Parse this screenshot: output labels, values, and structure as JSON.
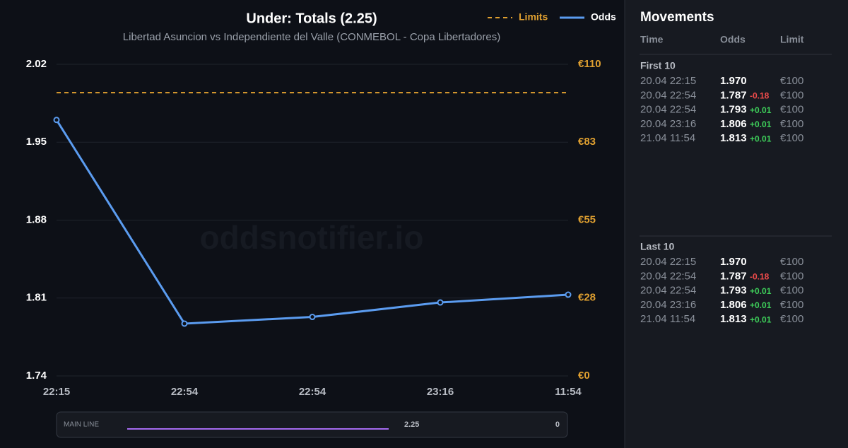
{
  "chart_data": {
    "type": "line",
    "title": "Under: Totals (2.25)",
    "subtitle": "Libertad Asuncion vs Independiente del Valle (CONMEBOL - Copa Libertadores)",
    "watermark": "oddsnotifier.io",
    "categories": [
      "22:15",
      "22:54",
      "22:54",
      "23:16",
      "11:54"
    ],
    "series": [
      {
        "name": "Limits",
        "color": "#e0a030",
        "dashed": true,
        "axis": "y2",
        "values": [
          100,
          100,
          100,
          100,
          100
        ]
      },
      {
        "name": "Odds",
        "color": "#5b9cf0",
        "dashed": false,
        "markers": true,
        "values": [
          1.97,
          1.787,
          1.793,
          1.806,
          1.813
        ]
      }
    ],
    "ylim": [
      1.74,
      2.02
    ],
    "yticks": [
      1.74,
      1.81,
      1.88,
      1.95,
      2.02
    ],
    "y2lim": [
      0,
      110
    ],
    "y2ticks": [
      {
        "value": 0,
        "label": "€0"
      },
      {
        "value": 27.5,
        "label": "€28"
      },
      {
        "value": 55,
        "label": "€55"
      },
      {
        "value": 82.5,
        "label": "€83"
      },
      {
        "value": 110,
        "label": "€110"
      }
    ],
    "grid": true,
    "legend": "top-right"
  },
  "range_bar": {
    "label": "MAIN LINE",
    "line": "2.25",
    "end": "0"
  },
  "movements": {
    "title": "Movements",
    "headers": [
      "Time",
      "Odds",
      "Limit"
    ],
    "sections": [
      {
        "label": "First 10",
        "rows": [
          {
            "time": "20.04 22:15",
            "odds": "1.970",
            "limit": "€100"
          },
          {
            "time": "20.04 22:54",
            "odds": "1.787",
            "change": "-0.18",
            "limit": "€100"
          },
          {
            "time": "20.04 22:54",
            "odds": "1.793",
            "change": "+0.01",
            "limit": "€100"
          },
          {
            "time": "20.04 23:16",
            "odds": "1.806",
            "change": "+0.01",
            "limit": "€100"
          },
          {
            "time": "21.04 11:54",
            "odds": "1.813",
            "change": "+0.01",
            "limit": "€100"
          }
        ]
      },
      {
        "label": "Last 10",
        "rows": [
          {
            "time": "20.04 22:15",
            "odds": "1.970",
            "limit": "€100"
          },
          {
            "time": "20.04 22:54",
            "odds": "1.787",
            "change": "-0.18",
            "limit": "€100"
          },
          {
            "time": "20.04 22:54",
            "odds": "1.793",
            "change": "+0.01",
            "limit": "€100"
          },
          {
            "time": "20.04 23:16",
            "odds": "1.806",
            "change": "+0.01",
            "limit": "€100"
          },
          {
            "time": "21.04 11:54",
            "odds": "1.813",
            "change": "+0.01",
            "limit": "€100"
          }
        ]
      }
    ]
  }
}
